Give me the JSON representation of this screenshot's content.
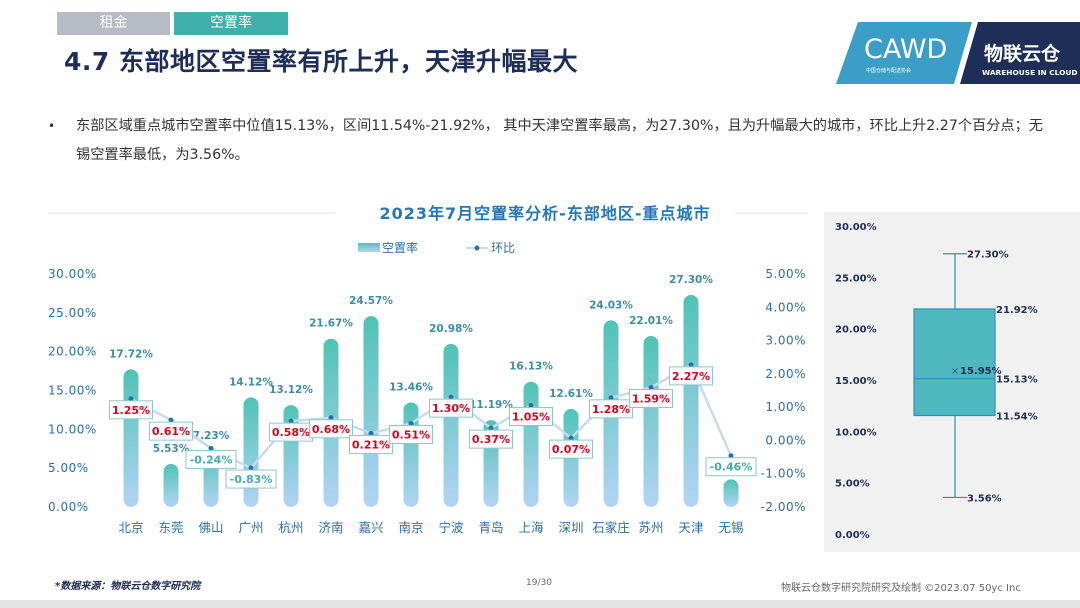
{
  "header": {
    "tabs": [
      {
        "label": "租金"
      },
      {
        "label": "空置率"
      }
    ],
    "title": "4.7 东部地区空置率有所上升，天津升幅最大",
    "logo_main": "CAWD",
    "logo_sub": "中国仓储与配送协会",
    "logo_brand": "物联云仓",
    "logo_brand_sub": "WAREHOUSE IN CLOUD"
  },
  "summary": {
    "bullet": "•",
    "text": "东部区域重点城市空置率中位值15.13%，区间11.54%-21.92%， 其中天津空置率最高，为27.30%，且为升幅最大的城市，环比上升2.27个百分点；无锡空置率最低，为3.56%。"
  },
  "colors": {
    "bar_top": "#4fc3b5",
    "bar_bottom": "#b3d4f4",
    "line": "#c6dbf2",
    "marker": "#2c6fa6",
    "positive": "#e0001b",
    "negative": "#3fb0ac",
    "title": "#2577b8",
    "box_fill": "#4fb8be",
    "box_stroke": "#2a8fc4"
  },
  "chart_data": [
    {
      "type": "bar",
      "title": "2023年7月空置率分析-东部地区-重点城市",
      "categories": [
        "北京",
        "东莞",
        "佛山",
        "广州",
        "杭州",
        "济南",
        "嘉兴",
        "南京",
        "宁波",
        "青岛",
        "上海",
        "深圳",
        "石家庄",
        "苏州",
        "天津",
        "无锡"
      ],
      "series": [
        {
          "name": "空置率",
          "type": "bar",
          "axis": "left",
          "values": [
            17.72,
            5.53,
            7.23,
            14.12,
            13.12,
            21.67,
            24.57,
            13.46,
            20.98,
            11.19,
            16.13,
            12.61,
            24.03,
            22.01,
            27.3,
            3.56
          ],
          "labels": [
            "17.72%",
            "5.53%",
            "7.23%",
            "14.12%",
            "13.12%",
            "21.67%",
            "24.57%",
            "13.46%",
            "20.98%",
            "11.19%",
            "16.13%",
            "12.61%",
            "24.03%",
            "22.01%",
            "27.30%",
            "3.56%"
          ]
        },
        {
          "name": "环比",
          "type": "line",
          "axis": "right",
          "values": [
            1.25,
            0.61,
            -0.24,
            -0.83,
            0.58,
            0.68,
            0.21,
            0.51,
            1.3,
            0.37,
            1.05,
            0.07,
            1.28,
            1.59,
            2.27,
            -0.46
          ],
          "labels": [
            "1.25%",
            "0.61%",
            "-0.24%",
            "-0.83%",
            "0.58%",
            "0.68%",
            "0.21%",
            "0.51%",
            "1.30%",
            "0.37%",
            "1.05%",
            "0.07%",
            "1.28%",
            "1.59%",
            "2.27%",
            "-0.46%"
          ]
        }
      ],
      "left_axis": {
        "ylim": [
          0,
          30
        ],
        "ticks": [
          "0.00%",
          "5.00%",
          "10.00%",
          "15.00%",
          "20.00%",
          "25.00%",
          "30.00%"
        ]
      },
      "right_axis": {
        "ylim": [
          -2,
          5
        ],
        "ticks": [
          "-2.00%",
          "-1.00%",
          "0.00%",
          "1.00%",
          "2.00%",
          "3.00%",
          "4.00%",
          "5.00%"
        ]
      },
      "legend": "top-center",
      "grid": false
    },
    {
      "type": "box",
      "ylim": [
        0,
        30
      ],
      "ticks": [
        "0.00%",
        "5.00%",
        "10.00%",
        "15.00%",
        "20.00%",
        "25.00%",
        "30.00%"
      ],
      "max": 27.3,
      "q3": 21.92,
      "median": 15.13,
      "mean": 15.95,
      "q1": 11.54,
      "min": 3.56,
      "labels": {
        "max": "27.30%",
        "q3": "21.92%",
        "median": "15.13%",
        "mean": "15.95%",
        "q1": "11.54%",
        "min": "3.56%"
      }
    }
  ],
  "footer": {
    "source": "*数据来源：物联云仓数字研究院",
    "page": "19/30",
    "credit": "物联云仓数字研究院研究及绘制   ©2023.07  50yc Inc"
  }
}
